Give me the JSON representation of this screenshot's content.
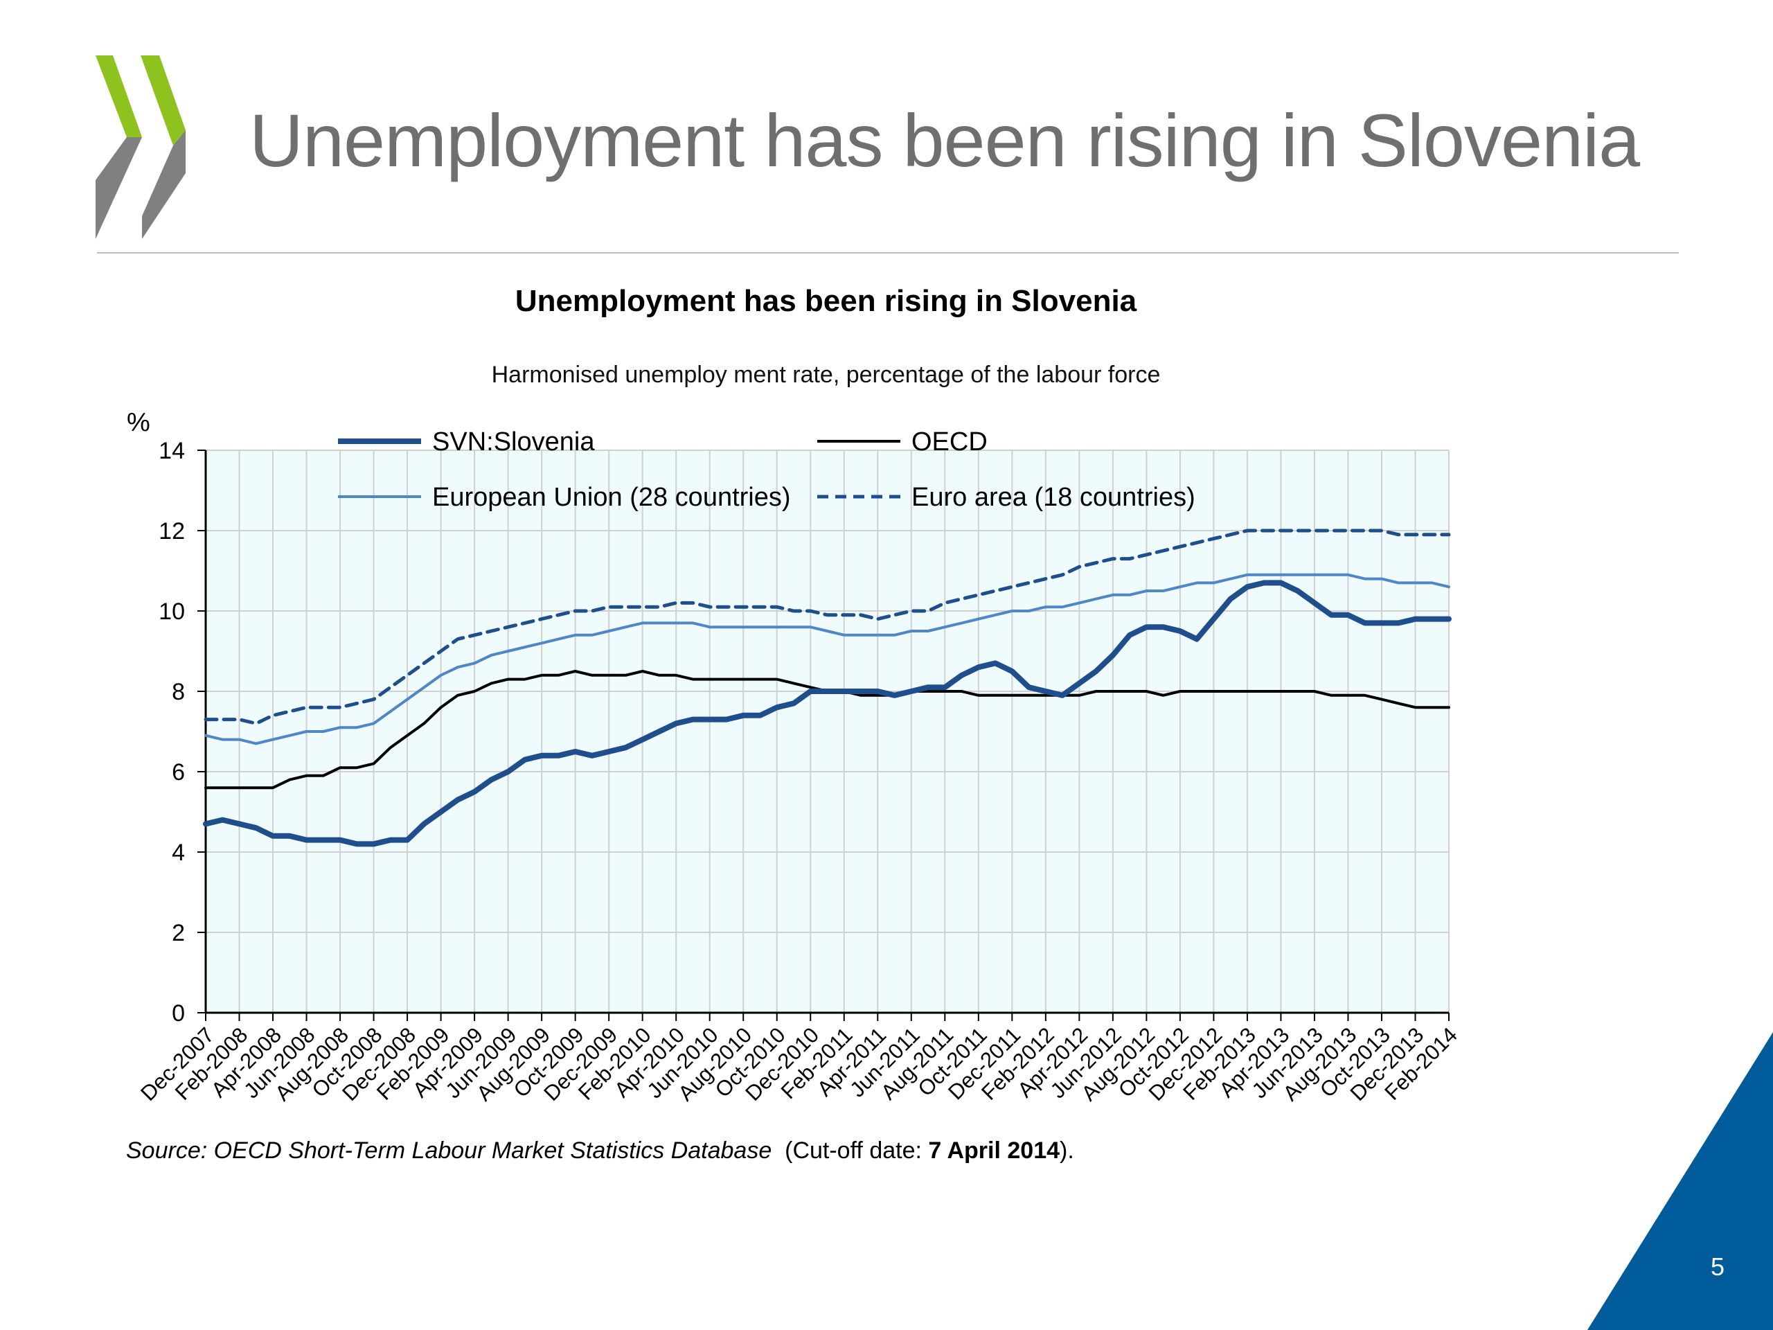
{
  "slide": {
    "title": "Unemployment has been rising in Slovenia",
    "page_number": "5",
    "source_italic": "Source: OECD Short-Term Labour Market Statistics Database",
    "source_plain": "  (Cut-off date: ",
    "source_bold": "7 April 2014",
    "source_end": ").",
    "colors": {
      "title": "#6f6f6f",
      "logo_green": "#8dc21f",
      "logo_grey": "#808080",
      "corner_blue": "#005b9a"
    }
  },
  "chart_data": {
    "type": "line",
    "title": "Unemployment has been rising in Slovenia",
    "subtitle": "Harmonised unemploy ment rate, percentage of the labour force",
    "ylabel": "%",
    "ylim": [
      0,
      14
    ],
    "yticks": [
      0,
      2,
      4,
      6,
      8,
      10,
      12,
      14
    ],
    "grid": true,
    "legend_placement": "top",
    "x": [
      "Dec-2007",
      "Jan-2008",
      "Feb-2008",
      "Mar-2008",
      "Apr-2008",
      "May-2008",
      "Jun-2008",
      "Jul-2008",
      "Aug-2008",
      "Sep-2008",
      "Oct-2008",
      "Nov-2008",
      "Dec-2008",
      "Jan-2009",
      "Feb-2009",
      "Mar-2009",
      "Apr-2009",
      "May-2009",
      "Jun-2009",
      "Jul-2009",
      "Aug-2009",
      "Sep-2009",
      "Oct-2009",
      "Nov-2009",
      "Dec-2009",
      "Jan-2010",
      "Feb-2010",
      "Mar-2010",
      "Apr-2010",
      "May-2010",
      "Jun-2010",
      "Jul-2010",
      "Aug-2010",
      "Sep-2010",
      "Oct-2010",
      "Nov-2010",
      "Dec-2010",
      "Jan-2011",
      "Feb-2011",
      "Mar-2011",
      "Apr-2011",
      "May-2011",
      "Jun-2011",
      "Jul-2011",
      "Aug-2011",
      "Sep-2011",
      "Oct-2011",
      "Nov-2011",
      "Dec-2011",
      "Jan-2012",
      "Feb-2012",
      "Mar-2012",
      "Apr-2012",
      "May-2012",
      "Jun-2012",
      "Jul-2012",
      "Aug-2012",
      "Sep-2012",
      "Oct-2012",
      "Nov-2012",
      "Dec-2012",
      "Jan-2013",
      "Feb-2013",
      "Mar-2013",
      "Apr-2013",
      "May-2013",
      "Jun-2013",
      "Jul-2013",
      "Aug-2013",
      "Sep-2013",
      "Oct-2013",
      "Nov-2013",
      "Dec-2013",
      "Jan-2014",
      "Feb-2014"
    ],
    "xtick_labels": [
      "Dec-2007",
      "Feb-2008",
      "Apr-2008",
      "Jun-2008",
      "Aug-2008",
      "Oct-2008",
      "Dec-2008",
      "Feb-2009",
      "Apr-2009",
      "Jun-2009",
      "Aug-2009",
      "Oct-2009",
      "Dec-2009",
      "Feb-2010",
      "Apr-2010",
      "Jun-2010",
      "Aug-2010",
      "Oct-2010",
      "Dec-2010",
      "Feb-2011",
      "Apr-2011",
      "Jun-2011",
      "Aug-2011",
      "Oct-2011",
      "Dec-2011",
      "Feb-2012",
      "Apr-2012",
      "Jun-2012",
      "Aug-2012",
      "Oct-2012",
      "Dec-2012",
      "Feb-2013",
      "Apr-2013",
      "Jun-2013",
      "Aug-2013",
      "Oct-2013",
      "Dec-2013",
      "Feb-2014"
    ],
    "series": [
      {
        "name": "SVN:Slovenia",
        "color": "#1f4e8c",
        "style": "solid-thick",
        "values": [
          4.7,
          4.8,
          4.7,
          4.6,
          4.4,
          4.4,
          4.3,
          4.3,
          4.3,
          4.2,
          4.2,
          4.3,
          4.3,
          4.7,
          5.0,
          5.3,
          5.5,
          5.8,
          6.0,
          6.3,
          6.4,
          6.4,
          6.5,
          6.4,
          6.5,
          6.6,
          6.8,
          7.0,
          7.2,
          7.3,
          7.3,
          7.3,
          7.4,
          7.4,
          7.6,
          7.7,
          8.0,
          8.0,
          8.0,
          8.0,
          8.0,
          7.9,
          8.0,
          8.1,
          8.1,
          8.4,
          8.6,
          8.7,
          8.5,
          8.1,
          8.0,
          7.9,
          8.2,
          8.5,
          8.9,
          9.4,
          9.6,
          9.6,
          9.5,
          9.3,
          9.8,
          10.3,
          10.6,
          10.7,
          10.7,
          10.5,
          10.2,
          9.9,
          9.9,
          9.7,
          9.7,
          9.7,
          9.8,
          9.8,
          9.8
        ]
      },
      {
        "name": "OECD",
        "color": "#000000",
        "style": "solid",
        "values": [
          5.6,
          5.6,
          5.6,
          5.6,
          5.6,
          5.8,
          5.9,
          5.9,
          6.1,
          6.1,
          6.2,
          6.6,
          6.9,
          7.2,
          7.6,
          7.9,
          8.0,
          8.2,
          8.3,
          8.3,
          8.4,
          8.4,
          8.5,
          8.4,
          8.4,
          8.4,
          8.5,
          8.4,
          8.4,
          8.3,
          8.3,
          8.3,
          8.3,
          8.3,
          8.3,
          8.2,
          8.1,
          8.0,
          8.0,
          7.9,
          7.9,
          7.9,
          8.0,
          8.0,
          8.0,
          8.0,
          7.9,
          7.9,
          7.9,
          7.9,
          7.9,
          7.9,
          7.9,
          8.0,
          8.0,
          8.0,
          8.0,
          7.9,
          8.0,
          8.0,
          8.0,
          8.0,
          8.0,
          8.0,
          8.0,
          8.0,
          8.0,
          7.9,
          7.9,
          7.9,
          7.8,
          7.7,
          7.6,
          7.6,
          7.6
        ]
      },
      {
        "name": "European Union (28 countries)",
        "color": "#4f86c6",
        "style": "solid",
        "values": [
          6.9,
          6.8,
          6.8,
          6.7,
          6.8,
          6.9,
          7.0,
          7.0,
          7.1,
          7.1,
          7.2,
          7.5,
          7.8,
          8.1,
          8.4,
          8.6,
          8.7,
          8.9,
          9.0,
          9.1,
          9.2,
          9.3,
          9.4,
          9.4,
          9.5,
          9.6,
          9.7,
          9.7,
          9.7,
          9.7,
          9.6,
          9.6,
          9.6,
          9.6,
          9.6,
          9.6,
          9.6,
          9.5,
          9.4,
          9.4,
          9.4,
          9.4,
          9.5,
          9.5,
          9.6,
          9.7,
          9.8,
          9.9,
          10.0,
          10.0,
          10.1,
          10.1,
          10.2,
          10.3,
          10.4,
          10.4,
          10.5,
          10.5,
          10.6,
          10.7,
          10.7,
          10.8,
          10.9,
          10.9,
          10.9,
          10.9,
          10.9,
          10.9,
          10.9,
          10.8,
          10.8,
          10.7,
          10.7,
          10.7,
          10.6
        ]
      },
      {
        "name": "Euro area (18 countries)",
        "color": "#1f4e8c",
        "style": "dashed",
        "values": [
          7.3,
          7.3,
          7.3,
          7.2,
          7.4,
          7.5,
          7.6,
          7.6,
          7.6,
          7.7,
          7.8,
          8.1,
          8.4,
          8.7,
          9.0,
          9.3,
          9.4,
          9.5,
          9.6,
          9.7,
          9.8,
          9.9,
          10.0,
          10.0,
          10.1,
          10.1,
          10.1,
          10.1,
          10.2,
          10.2,
          10.1,
          10.1,
          10.1,
          10.1,
          10.1,
          10.0,
          10.0,
          9.9,
          9.9,
          9.9,
          9.8,
          9.9,
          10.0,
          10.0,
          10.2,
          10.3,
          10.4,
          10.5,
          10.6,
          10.7,
          10.8,
          10.9,
          11.1,
          11.2,
          11.3,
          11.3,
          11.4,
          11.5,
          11.6,
          11.7,
          11.8,
          11.9,
          12.0,
          12.0,
          12.0,
          12.0,
          12.0,
          12.0,
          12.0,
          12.0,
          12.0,
          11.9,
          11.9,
          11.9,
          11.9
        ]
      }
    ],
    "plot_background": "#effbfc"
  }
}
